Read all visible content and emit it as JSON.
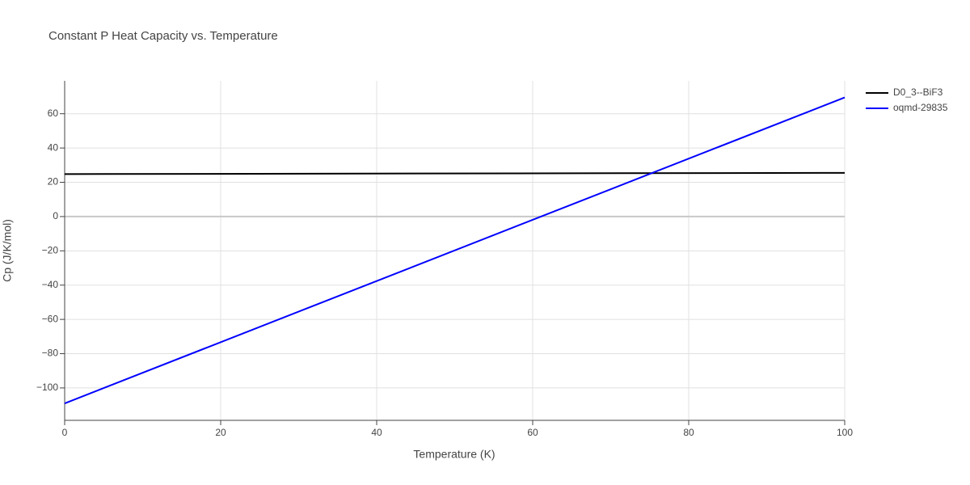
{
  "chart_data": {
    "type": "line",
    "title": "Constant P Heat Capacity vs. Temperature",
    "x_label": "Temperature (K)",
    "y_label": "Cp (J/K/mol)",
    "x": [
      0,
      100
    ],
    "series": [
      {
        "name": "D0_3--BiF3",
        "color": "#000000",
        "values": [
          24.8,
          25.5
        ]
      },
      {
        "name": "oqmd-29835",
        "color": "#0000ff",
        "values": [
          -109,
          69.5
        ]
      }
    ],
    "xlim": [
      0,
      100
    ],
    "xticks": [
      0,
      20,
      40,
      60,
      80,
      100
    ],
    "ylim": [
      -118.9,
      79.2
    ],
    "yticks": [
      {
        "value": -100,
        "label": "−100"
      },
      {
        "value": -80,
        "label": "−80"
      },
      {
        "value": -60,
        "label": "−60"
      },
      {
        "value": -40,
        "label": "−40"
      },
      {
        "value": -20,
        "label": "−20"
      },
      0,
      20,
      40,
      60
    ],
    "grid": true,
    "legend": "right"
  }
}
